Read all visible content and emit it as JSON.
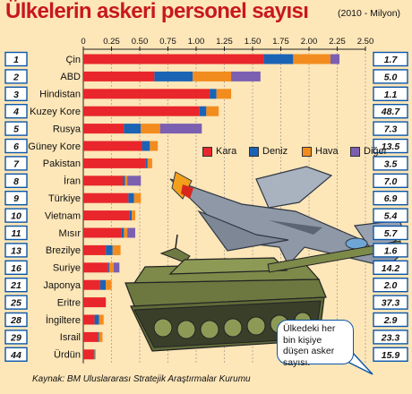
{
  "title": "Ülkelerin askeri personel sayısı",
  "subtitle": "(2010 - Milyon)",
  "source": "Kaynak: BM Uluslararası Stratejik Araştırmalar Kurumu",
  "callout": "Ülkedeki her bin kişiye düşen asker sayısı.",
  "colors": {
    "Kara": "#e8262b",
    "Deniz": "#1a63b5",
    "Hava": "#f28c1e",
    "Diğer": "#7b5fb0",
    "background": "#fde6b8",
    "title": "#c8171e",
    "rank_box_border": "#0a56a8"
  },
  "chart_data": {
    "type": "bar",
    "orientation": "horizontal",
    "stacked": true,
    "title": "Ülkelerin askeri personel sayısı",
    "subtitle": "(2010 - Milyon)",
    "xlim": [
      0,
      2.5
    ],
    "x_ticks": [
      "0",
      "0.25",
      "0.50",
      "0.75",
      "1.00",
      "1.25",
      "1.50",
      "1.75",
      "2.00",
      "2.25",
      "2.50"
    ],
    "legend_position": "right, inside plot",
    "categories": [
      "Çin",
      "ABD",
      "Hindistan",
      "Kuzey Kore",
      "Rusya",
      "Güney Kore",
      "Pakistan",
      "İran",
      "Türkiye",
      "Vietnam",
      "Mısır",
      "Brezilye",
      "Suriye",
      "Japonya",
      "Eritre",
      "İngiltere",
      "Israil",
      "Ürdün"
    ],
    "ranks": [
      "1",
      "2",
      "3",
      "4",
      "5",
      "6",
      "7",
      "8",
      "9",
      "10",
      "11",
      "13",
      "16",
      "21",
      "25",
      "28",
      "29",
      "44"
    ],
    "per_thousand": [
      "1.7",
      "5.0",
      "1.1",
      "48.7",
      "7.3",
      "13.5",
      "3.5",
      "7.0",
      "6.9",
      "5.4",
      "5.7",
      "1.6",
      "14.2",
      "2.0",
      "37.3",
      "2.9",
      "23.3",
      "15.9"
    ],
    "series": [
      {
        "name": "Kara",
        "values": [
          1.6,
          0.63,
          1.12,
          1.03,
          0.36,
          0.52,
          0.55,
          0.35,
          0.4,
          0.41,
          0.34,
          0.2,
          0.22,
          0.15,
          0.2,
          0.1,
          0.13,
          0.09
        ]
      },
      {
        "name": "Deniz",
        "values": [
          0.26,
          0.34,
          0.06,
          0.06,
          0.15,
          0.07,
          0.02,
          0.02,
          0.05,
          0.02,
          0.02,
          0.06,
          0.01,
          0.05,
          0.0,
          0.04,
          0.01,
          0.01
        ]
      },
      {
        "name": "Hava",
        "values": [
          0.33,
          0.34,
          0.13,
          0.11,
          0.17,
          0.07,
          0.04,
          0.02,
          0.06,
          0.03,
          0.03,
          0.07,
          0.04,
          0.05,
          0.0,
          0.04,
          0.03,
          0.01
        ]
      },
      {
        "name": "Diğer",
        "values": [
          0.08,
          0.26,
          0.0,
          0.0,
          0.37,
          0.0,
          0.0,
          0.12,
          0.0,
          0.0,
          0.07,
          0.0,
          0.05,
          0.0,
          0.0,
          0.0,
          0.0,
          0.0
        ]
      }
    ]
  }
}
